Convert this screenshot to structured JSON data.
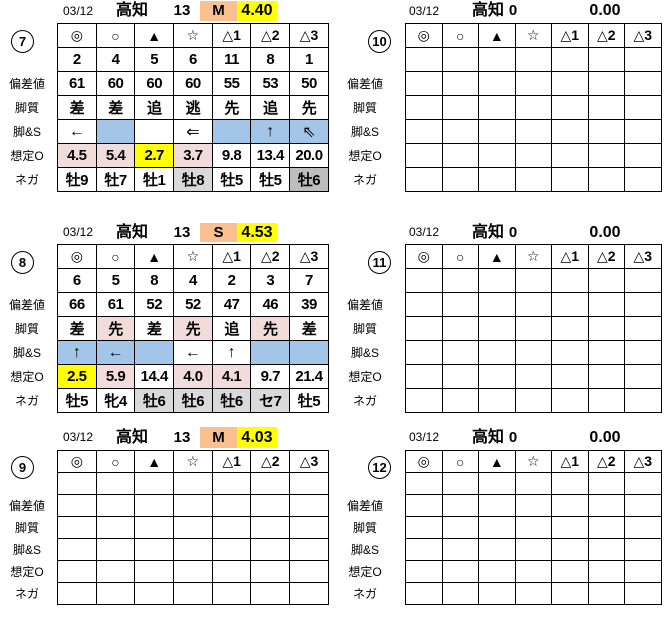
{
  "colors": {
    "orange": "#FAC090",
    "yellow": "#FFFF00",
    "pink": "#F2DCDB",
    "blue": "#A3C6E8",
    "gray": "#D9D9D9",
    "darkgray": "#BDBDBD",
    "border": "#000000"
  },
  "symbols": [
    "◎",
    "○",
    "▲",
    "☆",
    "△1",
    "△2",
    "△3"
  ],
  "row_labels": [
    "偏差値",
    "脚質",
    "脚&S",
    "想定O",
    "ネガ"
  ],
  "blocks": [
    {
      "badge": "7",
      "header": {
        "date": "03/12",
        "track": "高知",
        "race": "13",
        "mark": "M",
        "value": "4.40",
        "highlighted": true
      },
      "rows": [
        {
          "values": [
            "2",
            "4",
            "5",
            "6",
            "11",
            "8",
            "1"
          ],
          "bg": [
            "",
            "",
            "",
            "",
            "",
            "",
            ""
          ]
        },
        {
          "values": [
            "61",
            "60",
            "60",
            "60",
            "55",
            "53",
            "50"
          ],
          "bg": [
            "",
            "",
            "",
            "",
            "",
            "",
            ""
          ]
        },
        {
          "values": [
            "差",
            "差",
            "追",
            "逃",
            "先",
            "追",
            "先"
          ],
          "bg": [
            "",
            "",
            "",
            "",
            "",
            "",
            ""
          ]
        },
        {
          "values": [
            "←",
            "",
            "",
            "⇐",
            "",
            "↑",
            "⇖"
          ],
          "bg": [
            "",
            "blue",
            "",
            "",
            "blue",
            "blue",
            "blue"
          ]
        },
        {
          "values": [
            "4.5",
            "5.4",
            "2.7",
            "3.7",
            "9.8",
            "13.4",
            "20.0"
          ],
          "bg": [
            "pink",
            "pink",
            "yellow",
            "pink",
            "",
            "",
            ""
          ]
        },
        {
          "values": [
            "牡9",
            "牡7",
            "牡1",
            "牡8",
            "牡5",
            "牡5",
            "牡6"
          ],
          "bg": [
            "",
            "",
            "",
            "gray",
            "",
            "",
            "darkgray"
          ]
        }
      ]
    },
    {
      "badge": "8",
      "header": {
        "date": "03/12",
        "track": "高知",
        "race": "13",
        "mark": "S",
        "value": "4.53",
        "highlighted": true
      },
      "rows": [
        {
          "values": [
            "6",
            "5",
            "8",
            "4",
            "2",
            "3",
            "7"
          ],
          "bg": [
            "",
            "",
            "",
            "",
            "",
            "",
            ""
          ]
        },
        {
          "values": [
            "66",
            "61",
            "52",
            "52",
            "47",
            "46",
            "39"
          ],
          "bg": [
            "",
            "",
            "",
            "",
            "",
            "",
            ""
          ]
        },
        {
          "values": [
            "差",
            "先",
            "差",
            "先",
            "追",
            "先",
            "差"
          ],
          "bg": [
            "",
            "pink",
            "",
            "pink",
            "",
            "pink",
            ""
          ]
        },
        {
          "values": [
            "↑",
            "←",
            "",
            "←",
            "↑",
            "",
            ""
          ],
          "bg": [
            "blue",
            "blue",
            "blue",
            "",
            "",
            "blue",
            "blue"
          ]
        },
        {
          "values": [
            "2.5",
            "5.9",
            "14.4",
            "4.0",
            "4.1",
            "9.7",
            "21.4"
          ],
          "bg": [
            "yellow",
            "pink",
            "",
            "pink",
            "pink",
            "",
            ""
          ]
        },
        {
          "values": [
            "牡5",
            "牝4",
            "牡6",
            "牡6",
            "牡6",
            "セ7",
            "牡5"
          ],
          "bg": [
            "",
            "",
            "gray",
            "gray",
            "gray",
            "gray",
            ""
          ]
        }
      ]
    },
    {
      "badge": "9",
      "header": {
        "date": "03/12",
        "track": "高知",
        "race": "13",
        "mark": "M",
        "value": "4.03",
        "highlighted": true
      },
      "rows": [
        {
          "values": [
            "",
            "",
            "",
            "",
            "",
            "",
            ""
          ],
          "bg": [
            "",
            "",
            "",
            "",
            "",
            "",
            ""
          ]
        },
        {
          "values": [
            "",
            "",
            "",
            "",
            "",
            "",
            ""
          ],
          "bg": [
            "",
            "",
            "",
            "",
            "",
            "",
            ""
          ]
        },
        {
          "values": [
            "",
            "",
            "",
            "",
            "",
            "",
            ""
          ],
          "bg": [
            "",
            "",
            "",
            "",
            "",
            "",
            ""
          ]
        },
        {
          "values": [
            "",
            "",
            "",
            "",
            "",
            "",
            ""
          ],
          "bg": [
            "",
            "",
            "",
            "",
            "",
            "",
            ""
          ]
        },
        {
          "values": [
            "",
            "",
            "",
            "",
            "",
            "",
            ""
          ],
          "bg": [
            "",
            "",
            "",
            "",
            "",
            "",
            ""
          ]
        },
        {
          "values": [
            "",
            "",
            "",
            "",
            "",
            "",
            ""
          ],
          "bg": [
            "",
            "",
            "",
            "",
            "",
            "",
            ""
          ]
        }
      ]
    },
    {
      "badge": "10",
      "header": {
        "date": "03/12",
        "track": "高知",
        "race": "0",
        "mark": "",
        "value": "0.00",
        "highlighted": false
      },
      "rows": [
        {
          "values": [
            "",
            "",
            "",
            "",
            "",
            "",
            ""
          ],
          "bg": [
            "",
            "",
            "",
            "",
            "",
            "",
            ""
          ]
        },
        {
          "values": [
            "",
            "",
            "",
            "",
            "",
            "",
            ""
          ],
          "bg": [
            "",
            "",
            "",
            "",
            "",
            "",
            ""
          ]
        },
        {
          "values": [
            "",
            "",
            "",
            "",
            "",
            "",
            ""
          ],
          "bg": [
            "",
            "",
            "",
            "",
            "",
            "",
            ""
          ]
        },
        {
          "values": [
            "",
            "",
            "",
            "",
            "",
            "",
            ""
          ],
          "bg": [
            "",
            "",
            "",
            "",
            "",
            "",
            ""
          ]
        },
        {
          "values": [
            "",
            "",
            "",
            "",
            "",
            "",
            ""
          ],
          "bg": [
            "",
            "",
            "",
            "",
            "",
            "",
            ""
          ]
        },
        {
          "values": [
            "",
            "",
            "",
            "",
            "",
            "",
            ""
          ],
          "bg": [
            "",
            "",
            "",
            "",
            "",
            "",
            ""
          ]
        }
      ]
    },
    {
      "badge": "11",
      "header": {
        "date": "03/12",
        "track": "高知",
        "race": "0",
        "mark": "",
        "value": "0.00",
        "highlighted": false
      },
      "rows": [
        {
          "values": [
            "",
            "",
            "",
            "",
            "",
            "",
            ""
          ],
          "bg": [
            "",
            "",
            "",
            "",
            "",
            "",
            ""
          ]
        },
        {
          "values": [
            "",
            "",
            "",
            "",
            "",
            "",
            ""
          ],
          "bg": [
            "",
            "",
            "",
            "",
            "",
            "",
            ""
          ]
        },
        {
          "values": [
            "",
            "",
            "",
            "",
            "",
            "",
            ""
          ],
          "bg": [
            "",
            "",
            "",
            "",
            "",
            "",
            ""
          ]
        },
        {
          "values": [
            "",
            "",
            "",
            "",
            "",
            "",
            ""
          ],
          "bg": [
            "",
            "",
            "",
            "",
            "",
            "",
            ""
          ]
        },
        {
          "values": [
            "",
            "",
            "",
            "",
            "",
            "",
            ""
          ],
          "bg": [
            "",
            "",
            "",
            "",
            "",
            "",
            ""
          ]
        },
        {
          "values": [
            "",
            "",
            "",
            "",
            "",
            "",
            ""
          ],
          "bg": [
            "",
            "",
            "",
            "",
            "",
            "",
            ""
          ]
        }
      ]
    },
    {
      "badge": "12",
      "header": {
        "date": "03/12",
        "track": "高知",
        "race": "0",
        "mark": "",
        "value": "0.00",
        "highlighted": false
      },
      "rows": [
        {
          "values": [
            "",
            "",
            "",
            "",
            "",
            "",
            ""
          ],
          "bg": [
            "",
            "",
            "",
            "",
            "",
            "",
            ""
          ]
        },
        {
          "values": [
            "",
            "",
            "",
            "",
            "",
            "",
            ""
          ],
          "bg": [
            "",
            "",
            "",
            "",
            "",
            "",
            ""
          ]
        },
        {
          "values": [
            "",
            "",
            "",
            "",
            "",
            "",
            ""
          ],
          "bg": [
            "",
            "",
            "",
            "",
            "",
            "",
            ""
          ]
        },
        {
          "values": [
            "",
            "",
            "",
            "",
            "",
            "",
            ""
          ],
          "bg": [
            "",
            "",
            "",
            "",
            "",
            "",
            ""
          ]
        },
        {
          "values": [
            "",
            "",
            "",
            "",
            "",
            "",
            ""
          ],
          "bg": [
            "",
            "",
            "",
            "",
            "",
            "",
            ""
          ]
        },
        {
          "values": [
            "",
            "",
            "",
            "",
            "",
            "",
            ""
          ],
          "bg": [
            "",
            "",
            "",
            "",
            "",
            "",
            ""
          ]
        }
      ]
    }
  ]
}
